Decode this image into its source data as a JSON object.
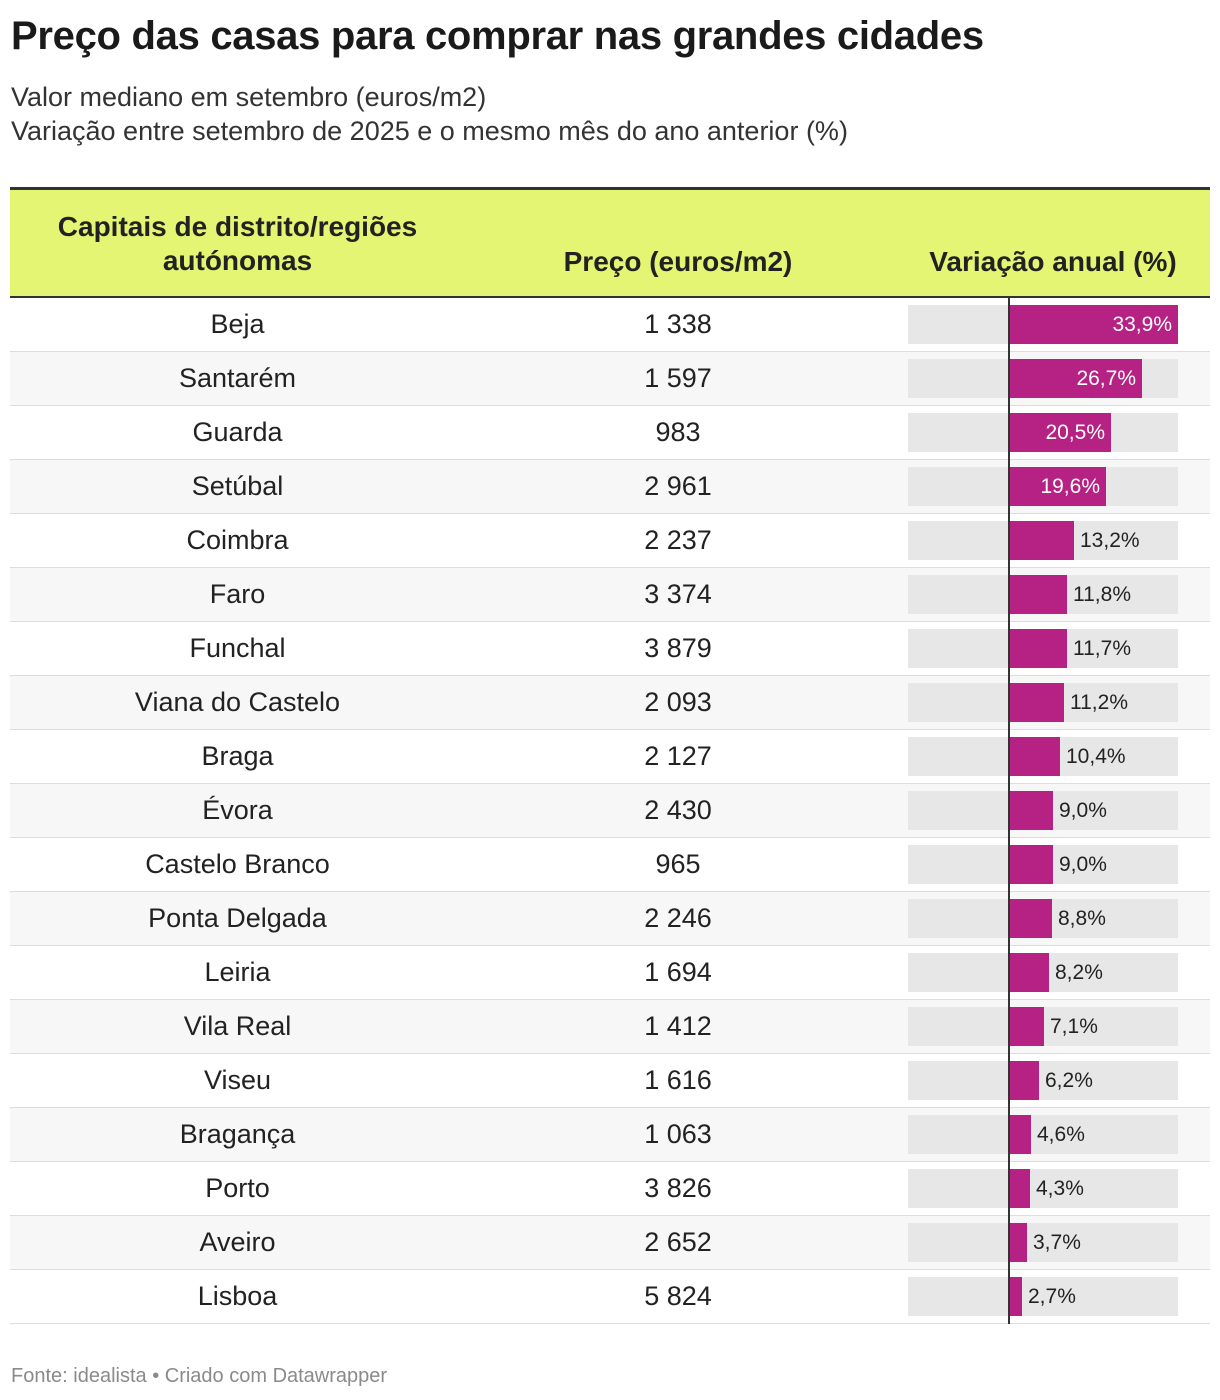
{
  "title": "Preço das casas para comprar nas grandes cidades",
  "subtitle_1": "Valor mediano em setembro (euros/m2)",
  "subtitle_2": "Variação entre setembro de 2025 e o mesmo mês do ano anterior (%)",
  "footer": "Fonte: idealista • Criado com Datawrapper",
  "colors": {
    "header_bg": "#e3f572",
    "bar": "#b52283",
    "bar_track": "#e7e7e7"
  },
  "chart_data": {
    "type": "table",
    "columns": [
      "Capitais de distrito/regiões autónomas",
      "Preço (euros/m2)",
      "Variação anual (%)"
    ],
    "rows": [
      {
        "city": "Beja",
        "price": "1 338",
        "variation": 33.9,
        "variation_label": "33,9%"
      },
      {
        "city": "Santarém",
        "price": "1 597",
        "variation": 26.7,
        "variation_label": "26,7%"
      },
      {
        "city": "Guarda",
        "price": "983",
        "variation": 20.5,
        "variation_label": "20,5%"
      },
      {
        "city": "Setúbal",
        "price": "2 961",
        "variation": 19.6,
        "variation_label": "19,6%"
      },
      {
        "city": "Coimbra",
        "price": "2 237",
        "variation": 13.2,
        "variation_label": "13,2%"
      },
      {
        "city": "Faro",
        "price": "3 374",
        "variation": 11.8,
        "variation_label": "11,8%"
      },
      {
        "city": "Funchal",
        "price": "3 879",
        "variation": 11.7,
        "variation_label": "11,7%"
      },
      {
        "city": "Viana do Castelo",
        "price": "2 093",
        "variation": 11.2,
        "variation_label": "11,2%"
      },
      {
        "city": "Braga",
        "price": "2 127",
        "variation": 10.4,
        "variation_label": "10,4%"
      },
      {
        "city": "Évora",
        "price": "2 430",
        "variation": 9.0,
        "variation_label": "9,0%"
      },
      {
        "city": "Castelo Branco",
        "price": "965",
        "variation": 9.0,
        "variation_label": "9,0%"
      },
      {
        "city": "Ponta Delgada",
        "price": "2 246",
        "variation": 8.8,
        "variation_label": "8,8%"
      },
      {
        "city": "Leiria",
        "price": "1 694",
        "variation": 8.2,
        "variation_label": "8,2%"
      },
      {
        "city": "Vila Real",
        "price": "1 412",
        "variation": 7.1,
        "variation_label": "7,1%"
      },
      {
        "city": "Viseu",
        "price": "1 616",
        "variation": 6.2,
        "variation_label": "6,2%"
      },
      {
        "city": "Bragança",
        "price": "1 063",
        "variation": 4.6,
        "variation_label": "4,6%"
      },
      {
        "city": "Porto",
        "price": "3 826",
        "variation": 4.3,
        "variation_label": "4,3%"
      },
      {
        "city": "Aveiro",
        "price": "2 652",
        "variation": 3.7,
        "variation_label": "3,7%"
      },
      {
        "city": "Lisboa",
        "price": "5 824",
        "variation": 2.7,
        "variation_label": "2,7%"
      }
    ],
    "variation_range": [
      -20,
      34
    ]
  }
}
